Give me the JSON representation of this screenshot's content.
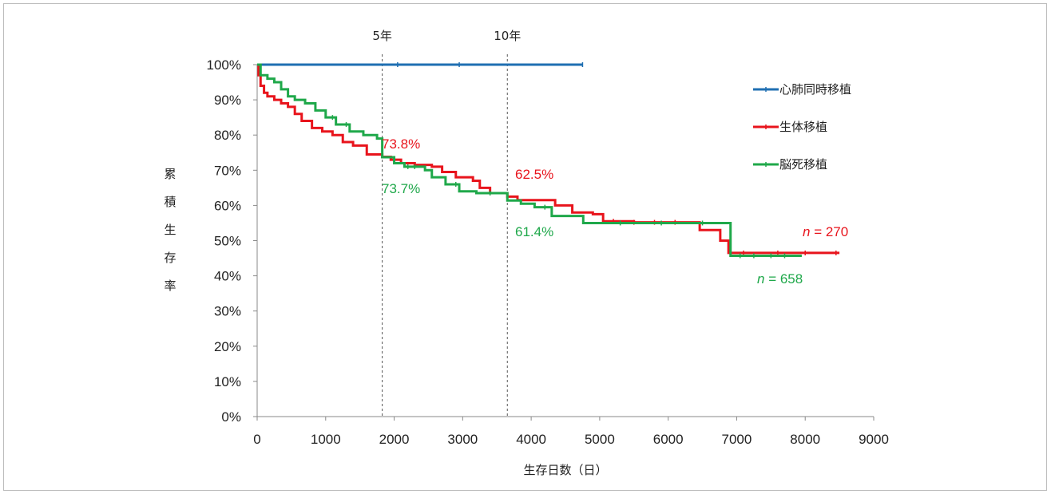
{
  "chart_data": {
    "type": "line",
    "title": "",
    "xlabel": "生存日数（日）",
    "ylabel": "累積生存率",
    "xlim": [
      0,
      9000
    ],
    "ylim": [
      0,
      100
    ],
    "x_ticks": [
      "0",
      "1000",
      "2000",
      "3000",
      "4000",
      "5000",
      "6000",
      "7000",
      "8000",
      "9000"
    ],
    "y_ticks": [
      "0%",
      "10%",
      "20%",
      "30%",
      "40%",
      "50%",
      "60%",
      "70%",
      "80%",
      "90%",
      "100%"
    ],
    "grid": false,
    "legend_position": "top-right",
    "reference_lines": [
      {
        "x": 1826,
        "label": "5年"
      },
      {
        "x": 3652,
        "label": "10年"
      }
    ],
    "series": [
      {
        "name": "心肺同時移植",
        "color": "#1f6fb2",
        "points": [
          [
            0,
            100
          ],
          [
            4750,
            100
          ]
        ],
        "censor_marks": [
          2050,
          2950,
          4750
        ]
      },
      {
        "name": "生体移植",
        "color": "#e8141c",
        "points": [
          [
            0,
            100
          ],
          [
            20,
            97
          ],
          [
            50,
            94
          ],
          [
            100,
            92
          ],
          [
            150,
            91
          ],
          [
            250,
            90
          ],
          [
            350,
            89
          ],
          [
            450,
            88
          ],
          [
            550,
            86
          ],
          [
            650,
            84
          ],
          [
            800,
            82
          ],
          [
            950,
            81
          ],
          [
            1100,
            80
          ],
          [
            1250,
            78
          ],
          [
            1400,
            77
          ],
          [
            1600,
            74.5
          ],
          [
            1826,
            73.8
          ],
          [
            1950,
            73
          ],
          [
            2100,
            72
          ],
          [
            2300,
            71.5
          ],
          [
            2550,
            71
          ],
          [
            2700,
            69.5
          ],
          [
            2900,
            68
          ],
          [
            3150,
            67
          ],
          [
            3250,
            65
          ],
          [
            3400,
            63.5
          ],
          [
            3652,
            62.5
          ],
          [
            3800,
            61.5
          ],
          [
            4100,
            61.5
          ],
          [
            4350,
            60
          ],
          [
            4600,
            58
          ],
          [
            4900,
            57.5
          ],
          [
            5050,
            55.5
          ],
          [
            5500,
            55.2
          ],
          [
            6450,
            55.2
          ],
          [
            6460,
            53
          ],
          [
            6750,
            53
          ],
          [
            6760,
            50
          ],
          [
            6870,
            50
          ],
          [
            6880,
            46.5
          ],
          [
            8500,
            46.5
          ]
        ],
        "censor_marks": [
          5200,
          5500,
          5800,
          6100,
          7100,
          7600,
          8000,
          8450
        ]
      },
      {
        "name": "脳死移植",
        "color": "#1fa84a",
        "points": [
          [
            0,
            100
          ],
          [
            50,
            97
          ],
          [
            150,
            96
          ],
          [
            250,
            95
          ],
          [
            350,
            93
          ],
          [
            450,
            91
          ],
          [
            550,
            90
          ],
          [
            700,
            89
          ],
          [
            850,
            87
          ],
          [
            1000,
            85
          ],
          [
            1150,
            83
          ],
          [
            1350,
            81
          ],
          [
            1550,
            80
          ],
          [
            1750,
            79
          ],
          [
            1826,
            73.7
          ],
          [
            2000,
            72
          ],
          [
            2150,
            71
          ],
          [
            2450,
            70
          ],
          [
            2550,
            68
          ],
          [
            2750,
            66
          ],
          [
            2950,
            64
          ],
          [
            3200,
            63.5
          ],
          [
            3652,
            61.4
          ],
          [
            3850,
            60.5
          ],
          [
            4050,
            59.5
          ],
          [
            4300,
            57
          ],
          [
            4750,
            57
          ],
          [
            4760,
            55
          ],
          [
            6900,
            55
          ],
          [
            6910,
            45.7
          ],
          [
            7950,
            45.7
          ]
        ],
        "censor_marks": [
          1100,
          1300,
          2200,
          2300,
          2900,
          3400,
          4200,
          5300,
          5900,
          6500,
          7050,
          7250,
          7500,
          7700
        ]
      }
    ],
    "annotations": [
      {
        "text": "73.8%",
        "series": "生体移植"
      },
      {
        "text": "73.7%",
        "series": "脳死移植"
      },
      {
        "text": "62.5%",
        "series": "生体移植"
      },
      {
        "text": "61.4%",
        "series": "脳死移植"
      },
      {
        "text": "n = 270",
        "series": "生体移植",
        "italic_prefix": "n",
        "rest": " = 270"
      },
      {
        "text": "n = 658",
        "series": "脳死移植",
        "italic_prefix": "n",
        "rest": " = 658"
      }
    ]
  }
}
